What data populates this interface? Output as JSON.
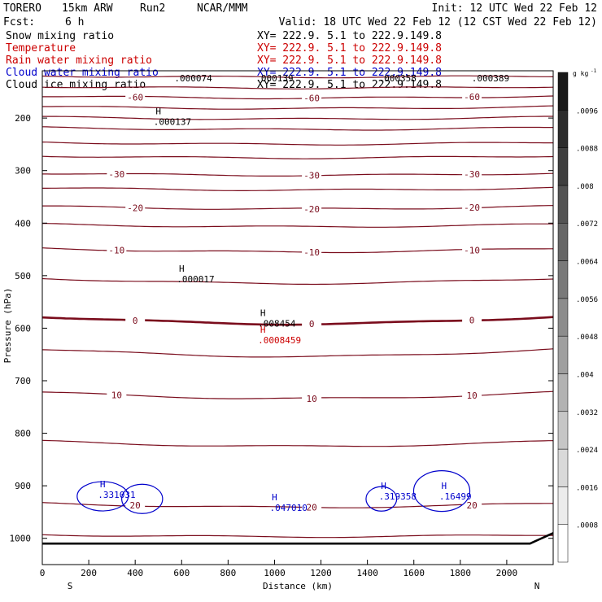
{
  "header": {
    "model": "TORERO",
    "run_desc": "15km ARW",
    "run": "Run2",
    "org": "NCAR/MMM",
    "init": "Init: 12 UTC Wed 22 Feb 12",
    "fcst": "Fcst:",
    "fcst_hours": "6 h",
    "valid": "Valid: 18 UTC Wed 22 Feb 12 (12 CST Wed 22 Feb 12)"
  },
  "legend": [
    {
      "label": "Snow mixing ratio",
      "xy": "XY= 222.9.  5.1 to 222.9.149.8",
      "color": "#000000"
    },
    {
      "label": "Temperature",
      "xy": "XY= 222.9.  5.1 to 222.9.149.8",
      "color": "#cc0000"
    },
    {
      "label": "Rain water mixing ratio",
      "xy": "XY= 222.9.  5.1 to 222.9.149.8",
      "color": "#cc0000"
    },
    {
      "label": "Cloud water mixing ratio",
      "xy": "XY= 222.9.  5.1 to 222.9.149.8",
      "color": "#0000cc"
    },
    {
      "label": "Cloud ice mixing ratio",
      "xy": "XY= 222.9.  5.1 to 222.9.149.8",
      "color": "#000000"
    }
  ],
  "chart_data": {
    "type": "contour-cross-section",
    "xlabel": "Distance (km)",
    "ylabel": "Pressure (hPa)",
    "xlim": [
      0,
      2200
    ],
    "ylim": [
      1050,
      110
    ],
    "x_ticks": [
      0,
      200,
      400,
      600,
      800,
      1000,
      1200,
      1400,
      1600,
      1800,
      2000
    ],
    "y_ticks": [
      200,
      300,
      400,
      500,
      600,
      700,
      800,
      900,
      1000
    ],
    "x_end_labels": {
      "left": "S",
      "right": "N"
    },
    "temperature_contours": [
      {
        "level": -70,
        "pressure": 120,
        "amp": 2
      },
      {
        "level": -65,
        "pressure": 140,
        "amp": 3
      },
      {
        "level": -60,
        "pressure": 158,
        "amp": 4,
        "label": "-60"
      },
      {
        "level": -55,
        "pressure": 178,
        "amp": 4
      },
      {
        "level": -50,
        "pressure": 198,
        "amp": 4
      },
      {
        "level": -45,
        "pressure": 218,
        "amp": 4
      },
      {
        "level": -40,
        "pressure": 246,
        "amp": 4
      },
      {
        "level": -35,
        "pressure": 272,
        "amp": 4
      },
      {
        "level": -30,
        "pressure": 305,
        "amp": 4,
        "label": "-30"
      },
      {
        "level": -25,
        "pressure": 333,
        "amp": 4
      },
      {
        "level": -20,
        "pressure": 368,
        "amp": 5,
        "label": "-20"
      },
      {
        "level": -15,
        "pressure": 402,
        "amp": 5
      },
      {
        "level": -10,
        "pressure": 448,
        "amp": 7,
        "label": "-10"
      },
      {
        "level": -5,
        "pressure": 505,
        "amp": 10
      },
      {
        "level": 0,
        "pressure": 578,
        "amp": 14,
        "label": "0",
        "bold": true
      },
      {
        "level": 5,
        "pressure": 640,
        "amp": 14
      },
      {
        "level": 10,
        "pressure": 722,
        "amp": 12,
        "label": "10"
      },
      {
        "level": 15,
        "pressure": 815,
        "amp": 10
      },
      {
        "level": 20,
        "pressure": 933,
        "amp": 8,
        "label": "20"
      },
      {
        "level": 25,
        "pressure": 993,
        "amp": 4
      }
    ],
    "maxima": [
      {
        "field": "Cloud ice mixing ratio",
        "x": 500,
        "p": 205,
        "value": ".000137",
        "color": "#000000"
      },
      {
        "field": "Cloud ice mixing ratio",
        "x": 600,
        "p": 505,
        "value": ".000017",
        "color": "#000000"
      },
      {
        "field": "Snow mixing ratio",
        "x": 950,
        "p": 589,
        "value": ".008454",
        "color": "#000000"
      },
      {
        "field": "Rain water mixing ratio",
        "x": 950,
        "p": 621,
        "value": ".0008459",
        "color": "#cc0000"
      },
      {
        "field": "Cloud water mixing ratio",
        "x": 260,
        "p": 915,
        "value": ".331031",
        "color": "#0000cc"
      },
      {
        "field": "Cloud water mixing ratio",
        "x": 1000,
        "p": 940,
        "value": ".047010",
        "color": "#0000cc"
      },
      {
        "field": "Cloud water mixing ratio",
        "x": 1470,
        "p": 918,
        "value": ".319358",
        "color": "#0000cc"
      },
      {
        "field": "Cloud water mixing ratio",
        "x": 1730,
        "p": 918,
        "value": ".16499",
        "color": "#0000cc"
      }
    ],
    "top_values": [
      {
        "x": 650,
        "value": ".000074"
      },
      {
        "x": 1000,
        "value": ".000139"
      },
      {
        "x": 1530,
        "value": ".000358"
      },
      {
        "x": 1930,
        "value": ".000389"
      }
    ],
    "colorbar": {
      "unit": "g kg",
      "unit_exp": "-1",
      "ticks": [
        ".0008",
        ".0016",
        ".0024",
        ".0032",
        ".004",
        ".0048",
        ".0056",
        ".0064",
        ".0072",
        ".008",
        ".0088",
        ".0096"
      ]
    }
  }
}
